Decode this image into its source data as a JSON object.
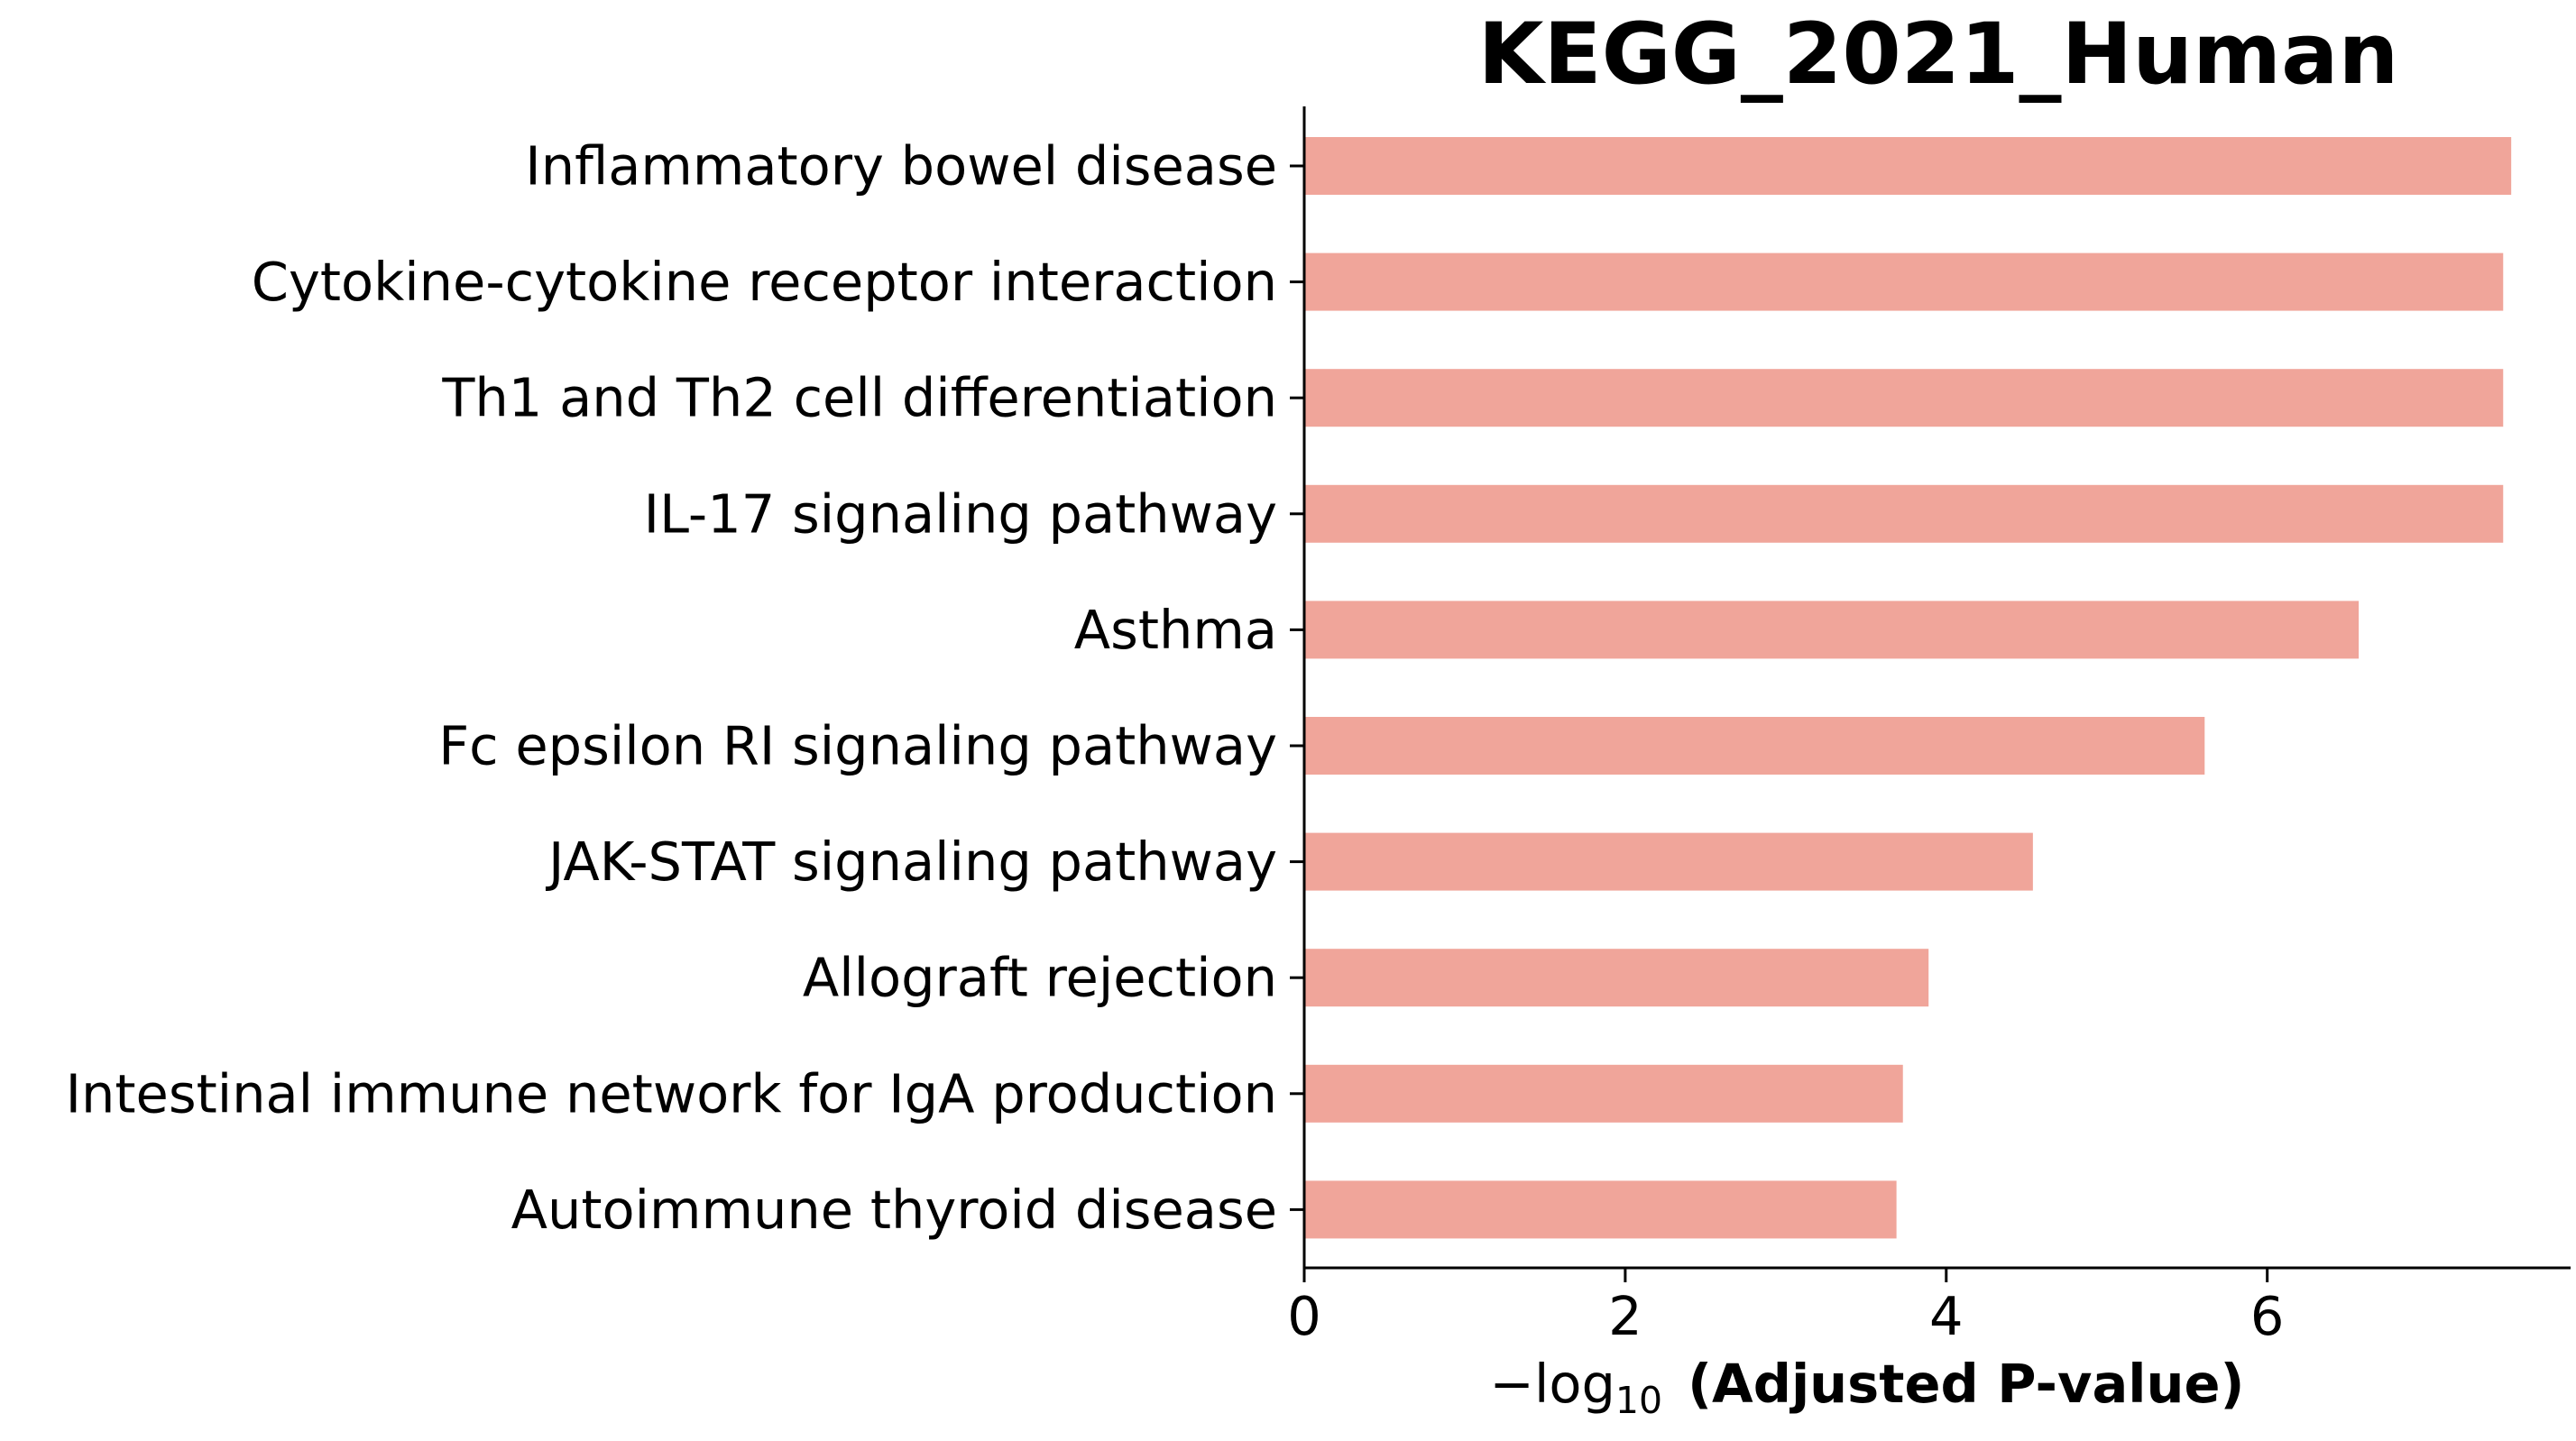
{
  "chart_data": {
    "type": "bar",
    "orientation": "horizontal",
    "title": "KEGG_2021_Human",
    "xlabel": {
      "prefix": "−log",
      "subscript": "10",
      "main": "(Adjusted P-value)"
    },
    "ylabel": "",
    "categories": [
      "Inflammatory bowel disease",
      "Cytokine-cytokine receptor interaction",
      "Th1 and Th2 cell differentiation",
      "IL-17 signaling pathway",
      "Asthma",
      "Fc epsilon RI signaling pathway",
      "JAK-STAT signaling pathway",
      "Allograft rejection",
      "Intestinal immune network for IgA production",
      "Autoimmune thyroid disease"
    ],
    "values": [
      7.52,
      7.47,
      7.47,
      7.47,
      6.57,
      5.61,
      4.54,
      3.89,
      3.73,
      3.69
    ],
    "xlim": [
      0,
      7.89
    ],
    "xticks": [
      0,
      2,
      4,
      6
    ],
    "bar_color": "#f0a59a",
    "grid": false
  }
}
